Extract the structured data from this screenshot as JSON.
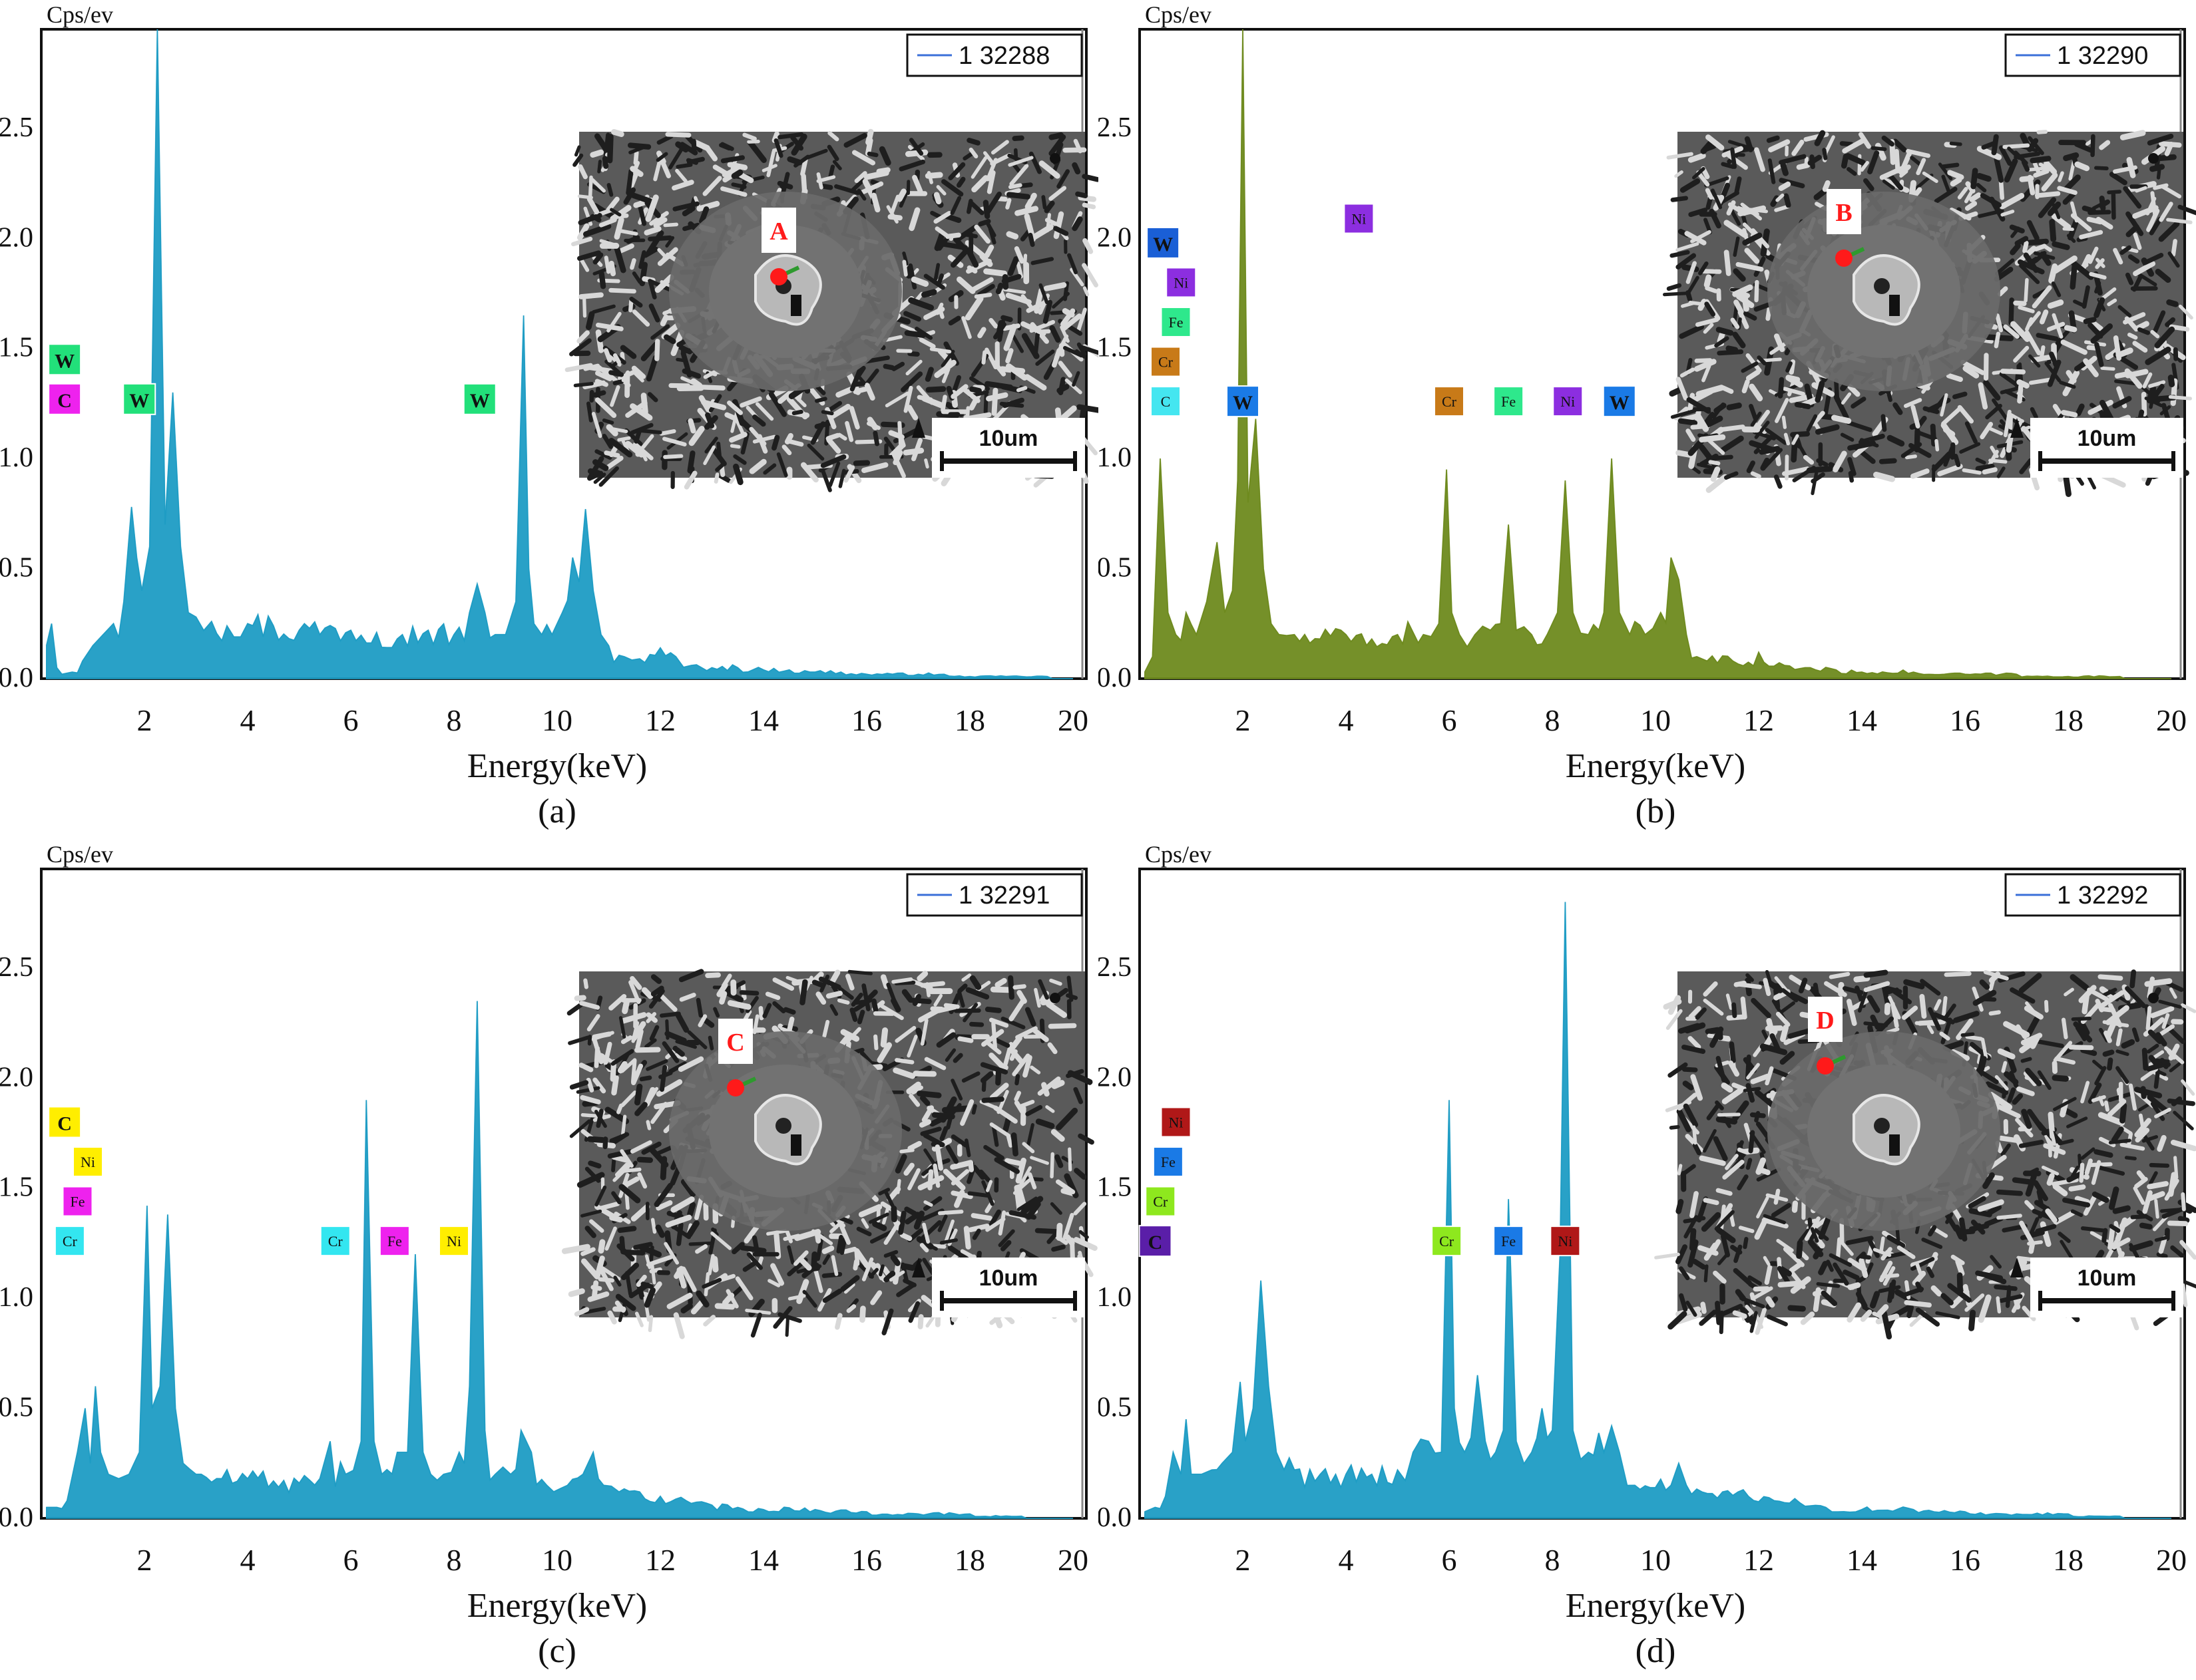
{
  "figure": {
    "panels": [
      "a",
      "b",
      "c",
      "d"
    ]
  },
  "chart_data": [
    {
      "type": "area",
      "id": "a",
      "caption": "(a)",
      "title": "",
      "xlabel": "Energy(keV)",
      "ylabel": "Cps/ev",
      "xlim": [
        0,
        20
      ],
      "ylim": [
        0,
        2.95
      ],
      "x_ticks": [
        2,
        4,
        6,
        8,
        10,
        12,
        14,
        16,
        18,
        20
      ],
      "y_ticks": [
        0.0,
        0.5,
        1.0,
        1.5,
        2.0,
        2.5
      ],
      "y_tick_labels": [
        "0.0",
        "0.5",
        "1.0",
        "1.5",
        "2.0",
        "2.5"
      ],
      "grid": false,
      "legend": {
        "label": "1 32288",
        "placement": "top-right"
      },
      "series": [
        {
          "name": "1 32288",
          "color": "#1e9cc4",
          "x": [
            0.1,
            0.2,
            0.3,
            0.4,
            0.6,
            0.8,
            1.0,
            1.2,
            1.4,
            1.6,
            1.75,
            1.85,
            1.95,
            2.1,
            2.25,
            2.4,
            2.55,
            2.7,
            2.85,
            3.0,
            3.3,
            3.6,
            4.0,
            4.5,
            5.0,
            5.5,
            6.0,
            6.5,
            7.0,
            7.5,
            8.0,
            8.3,
            8.45,
            8.6,
            8.8,
            9.0,
            9.2,
            9.35,
            9.45,
            9.55,
            9.7,
            9.9,
            10.1,
            10.3,
            10.55,
            10.7,
            10.85,
            11.0,
            11.3,
            11.6,
            12.0,
            12.3,
            12.6,
            13.0,
            13.5,
            14.0,
            14.5,
            15.0,
            15.5,
            16.0,
            16.5,
            17.0,
            17.5,
            18.0,
            18.5,
            19.0,
            19.5,
            20.0
          ],
          "y": [
            0.15,
            0.25,
            0.05,
            0.02,
            0.03,
            0.08,
            0.15,
            0.2,
            0.25,
            0.35,
            0.78,
            0.55,
            0.4,
            0.6,
            2.95,
            0.7,
            1.3,
            0.6,
            0.3,
            0.28,
            0.26,
            0.24,
            0.25,
            0.24,
            0.22,
            0.23,
            0.22,
            0.21,
            0.2,
            0.22,
            0.2,
            0.3,
            0.43,
            0.3,
            0.2,
            0.2,
            0.35,
            1.65,
            0.5,
            0.25,
            0.2,
            0.2,
            0.3,
            0.55,
            0.77,
            0.4,
            0.2,
            0.15,
            0.1,
            0.09,
            0.14,
            0.1,
            0.06,
            0.05,
            0.05,
            0.04,
            0.04,
            0.03,
            0.03,
            0.02,
            0.02,
            0.02,
            0.02,
            0.01,
            0.01,
            0.01,
            0.01,
            0.0
          ]
        }
      ],
      "peak_labels": [
        {
          "text": "W",
          "x": 0.35,
          "y": 1.45,
          "bg": "#22e07a",
          "size": "big"
        },
        {
          "text": "C",
          "x": 0.35,
          "y": 1.27,
          "bg": "#ee22ee",
          "size": "big"
        },
        {
          "text": "W",
          "x": 1.9,
          "y": 1.27,
          "bg": "#22e07a",
          "size": "big"
        },
        {
          "text": "W",
          "x": 8.5,
          "y": 1.27,
          "bg": "#22e07a",
          "size": "big"
        }
      ],
      "inset": {
        "spot_label": "A",
        "scale_label": "10um"
      }
    },
    {
      "type": "area",
      "id": "b",
      "caption": "(b)",
      "title": "",
      "xlabel": "Energy(keV)",
      "ylabel": "Cps/ev",
      "xlim": [
        0,
        20
      ],
      "ylim": [
        0,
        2.95
      ],
      "x_ticks": [
        2,
        4,
        6,
        8,
        10,
        12,
        14,
        16,
        18,
        20
      ],
      "y_ticks": [
        0.0,
        0.5,
        1.0,
        1.5,
        2.0,
        2.5
      ],
      "y_tick_labels": [
        "0.0",
        "0.5",
        "1.0",
        "1.5",
        "2.0",
        "2.5"
      ],
      "grid": false,
      "legend": {
        "label": "1 32290",
        "placement": "top-right"
      },
      "series": [
        {
          "name": "1 32290",
          "color": "#6e8a1e",
          "x": [
            0.1,
            0.25,
            0.4,
            0.55,
            0.7,
            0.9,
            1.1,
            1.3,
            1.5,
            1.65,
            1.8,
            1.9,
            2.0,
            2.1,
            2.25,
            2.4,
            2.55,
            2.7,
            3.0,
            3.5,
            4.0,
            4.5,
            5.0,
            5.5,
            5.8,
            5.95,
            6.05,
            6.2,
            6.5,
            6.8,
            7.0,
            7.15,
            7.3,
            7.6,
            7.9,
            8.1,
            8.25,
            8.4,
            8.7,
            9.0,
            9.15,
            9.3,
            9.5,
            9.8,
            10.1,
            10.3,
            10.45,
            10.6,
            10.8,
            11.0,
            11.5,
            12.0,
            12.5,
            13.0,
            13.5,
            14.0,
            15.0,
            16.0,
            17.0,
            18.0,
            19.0,
            20.0
          ],
          "y": [
            0.03,
            0.1,
            1.0,
            0.3,
            0.2,
            0.3,
            0.2,
            0.35,
            0.62,
            0.3,
            0.4,
            0.9,
            2.95,
            0.8,
            1.18,
            0.5,
            0.25,
            0.2,
            0.2,
            0.18,
            0.2,
            0.18,
            0.2,
            0.2,
            0.25,
            0.95,
            0.3,
            0.2,
            0.2,
            0.22,
            0.25,
            0.7,
            0.22,
            0.2,
            0.2,
            0.3,
            0.9,
            0.3,
            0.2,
            0.3,
            1.0,
            0.3,
            0.2,
            0.2,
            0.3,
            0.55,
            0.45,
            0.2,
            0.1,
            0.08,
            0.08,
            0.12,
            0.06,
            0.05,
            0.04,
            0.03,
            0.03,
            0.02,
            0.02,
            0.01,
            0.01,
            0.0
          ]
        }
      ],
      "peak_labels": [
        {
          "text": "W",
          "x": 0.35,
          "y": 1.98,
          "bg": "#1a5fd6",
          "size": "big"
        },
        {
          "text": "Ni",
          "x": 0.7,
          "y": 1.8,
          "bg": "#8c2ee0",
          "size": "small"
        },
        {
          "text": "Fe",
          "x": 0.6,
          "y": 1.62,
          "bg": "#2ee88c",
          "size": "small"
        },
        {
          "text": "Cr",
          "x": 0.4,
          "y": 1.44,
          "bg": "#c87a18",
          "size": "small"
        },
        {
          "text": "C",
          "x": 0.4,
          "y": 1.26,
          "bg": "#44e6f0",
          "size": "small"
        },
        {
          "text": "W",
          "x": 2.0,
          "y": 1.26,
          "bg": "#1a7ae6",
          "size": "big"
        },
        {
          "text": "Cr",
          "x": 6.0,
          "y": 1.26,
          "bg": "#c87a18",
          "size": "small"
        },
        {
          "text": "Fe",
          "x": 7.15,
          "y": 1.26,
          "bg": "#2ee88c",
          "size": "small"
        },
        {
          "text": "Ni",
          "x": 8.3,
          "y": 1.26,
          "bg": "#8c2ee0",
          "size": "small"
        },
        {
          "text": "W",
          "x": 9.3,
          "y": 1.26,
          "bg": "#1a7ae6",
          "size": "big"
        },
        {
          "text": "Ni",
          "x": 4.25,
          "y": 2.09,
          "bg": "#8c2ee0",
          "size": "small"
        }
      ],
      "inset": {
        "spot_label": "B",
        "scale_label": "10um"
      }
    },
    {
      "type": "area",
      "id": "c",
      "caption": "(c)",
      "title": "",
      "xlabel": "Energy(keV)",
      "ylabel": "Cps/ev",
      "xlim": [
        0,
        20
      ],
      "ylim": [
        0,
        2.95
      ],
      "x_ticks": [
        2,
        4,
        6,
        8,
        10,
        12,
        14,
        16,
        18,
        20
      ],
      "y_ticks": [
        0.0,
        0.5,
        1.0,
        1.5,
        2.0,
        2.5
      ],
      "y_tick_labels": [
        "0.0",
        "0.5",
        "1.0",
        "1.5",
        "2.0",
        "2.5"
      ],
      "grid": false,
      "legend": {
        "label": "1 32291",
        "placement": "top-right"
      },
      "series": [
        {
          "name": "1 32291",
          "color": "#1e9cc4",
          "x": [
            0.1,
            0.3,
            0.5,
            0.7,
            0.85,
            0.95,
            1.05,
            1.15,
            1.3,
            1.5,
            1.7,
            1.9,
            2.05,
            2.15,
            2.3,
            2.45,
            2.6,
            2.75,
            3.0,
            3.5,
            4.0,
            4.5,
            5.0,
            5.4,
            5.6,
            5.9,
            6.2,
            6.3,
            6.45,
            6.6,
            6.9,
            7.1,
            7.25,
            7.4,
            7.55,
            7.8,
            8.1,
            8.3,
            8.45,
            8.6,
            8.8,
            9.1,
            9.3,
            9.5,
            9.8,
            10.2,
            10.5,
            10.7,
            10.9,
            11.2,
            11.6,
            12.0,
            12.5,
            13.0,
            13.5,
            14.0,
            15.0,
            16.0,
            17.0,
            18.0,
            19.0,
            20.0
          ],
          "y": [
            0.05,
            0.05,
            0.08,
            0.3,
            0.5,
            0.25,
            0.6,
            0.3,
            0.2,
            0.18,
            0.2,
            0.3,
            1.42,
            0.5,
            0.6,
            1.38,
            0.5,
            0.25,
            0.2,
            0.18,
            0.18,
            0.17,
            0.16,
            0.18,
            0.35,
            0.2,
            0.35,
            1.9,
            0.35,
            0.2,
            0.3,
            0.3,
            1.2,
            0.3,
            0.2,
            0.2,
            0.3,
            0.6,
            2.35,
            0.4,
            0.2,
            0.2,
            0.4,
            0.3,
            0.15,
            0.15,
            0.2,
            0.3,
            0.15,
            0.12,
            0.12,
            0.1,
            0.08,
            0.06,
            0.05,
            0.04,
            0.04,
            0.03,
            0.02,
            0.02,
            0.01,
            0.0
          ]
        }
      ],
      "peak_labels": [
        {
          "text": "C",
          "x": 0.35,
          "y": 1.8,
          "bg": "#ffee00",
          "size": "big"
        },
        {
          "text": "Ni",
          "x": 0.8,
          "y": 1.62,
          "bg": "#ffee00",
          "size": "small"
        },
        {
          "text": "Fe",
          "x": 0.6,
          "y": 1.44,
          "bg": "#ee22ee",
          "size": "small"
        },
        {
          "text": "Cr",
          "x": 0.45,
          "y": 1.26,
          "bg": "#33e6f0",
          "size": "small"
        },
        {
          "text": "Cr",
          "x": 5.7,
          "y": 1.26,
          "bg": "#33e6f0",
          "size": "small"
        },
        {
          "text": "Fe",
          "x": 6.85,
          "y": 1.26,
          "bg": "#ee22ee",
          "size": "small"
        },
        {
          "text": "Ni",
          "x": 8.0,
          "y": 1.26,
          "bg": "#ffee00",
          "size": "small"
        }
      ],
      "inset": {
        "spot_label": "C",
        "scale_label": "10um"
      }
    },
    {
      "type": "area",
      "id": "d",
      "caption": "(d)",
      "title": "",
      "xlabel": "Energy(keV)",
      "ylabel": "Cps/ev",
      "xlim": [
        0,
        20
      ],
      "ylim": [
        0,
        2.95
      ],
      "x_ticks": [
        2,
        4,
        6,
        8,
        10,
        12,
        14,
        16,
        18,
        20
      ],
      "y_ticks": [
        0.0,
        0.5,
        1.0,
        1.5,
        2.0,
        2.5
      ],
      "y_tick_labels": [
        "0.0",
        "0.5",
        "1.0",
        "1.5",
        "2.0",
        "2.5"
      ],
      "grid": false,
      "legend": {
        "label": "1 32292",
        "placement": "top-right"
      },
      "series": [
        {
          "name": "1 32292",
          "color": "#1e9cc4",
          "x": [
            0.1,
            0.3,
            0.5,
            0.65,
            0.8,
            0.9,
            1.0,
            1.2,
            1.4,
            1.6,
            1.8,
            1.95,
            2.05,
            2.2,
            2.35,
            2.5,
            2.65,
            2.8,
            3.0,
            3.5,
            4.0,
            4.5,
            5.0,
            5.3,
            5.6,
            5.85,
            6.0,
            6.1,
            6.3,
            6.55,
            6.7,
            6.9,
            7.05,
            7.15,
            7.3,
            7.6,
            7.8,
            8.0,
            8.15,
            8.25,
            8.4,
            8.7,
            9.0,
            9.15,
            9.3,
            9.6,
            10.0,
            10.3,
            10.45,
            10.6,
            10.9,
            11.3,
            11.8,
            12.3,
            12.8,
            13.3,
            14.0,
            15.0,
            16.0,
            17.0,
            18.0,
            19.0,
            20.0
          ],
          "y": [
            0.03,
            0.05,
            0.1,
            0.3,
            0.2,
            0.45,
            0.2,
            0.2,
            0.22,
            0.25,
            0.3,
            0.62,
            0.35,
            0.5,
            1.08,
            0.6,
            0.3,
            0.22,
            0.22,
            0.2,
            0.2,
            0.2,
            0.22,
            0.3,
            0.35,
            0.3,
            1.9,
            0.5,
            0.3,
            0.65,
            0.35,
            0.3,
            0.4,
            1.45,
            0.35,
            0.3,
            0.5,
            0.4,
            1.2,
            2.8,
            0.4,
            0.3,
            0.3,
            0.42,
            0.3,
            0.15,
            0.14,
            0.15,
            0.25,
            0.15,
            0.12,
            0.12,
            0.1,
            0.08,
            0.07,
            0.05,
            0.04,
            0.04,
            0.03,
            0.02,
            0.02,
            0.01,
            0.0
          ]
        }
      ],
      "peak_labels": [
        {
          "text": "Ni",
          "x": 0.6,
          "y": 1.8,
          "bg": "#b01818",
          "size": "small"
        },
        {
          "text": "Fe",
          "x": 0.45,
          "y": 1.62,
          "bg": "#1a7ae6",
          "size": "small"
        },
        {
          "text": "Cr",
          "x": 0.3,
          "y": 1.44,
          "bg": "#8ee81e",
          "size": "small"
        },
        {
          "text": "C",
          "x": 0.2,
          "y": 1.26,
          "bg": "#5a1ea8",
          "size": "big"
        },
        {
          "text": "Cr",
          "x": 5.95,
          "y": 1.26,
          "bg": "#8ee81e",
          "size": "small"
        },
        {
          "text": "Fe",
          "x": 7.15,
          "y": 1.26,
          "bg": "#1a7ae6",
          "size": "small"
        },
        {
          "text": "Ni",
          "x": 8.25,
          "y": 1.26,
          "bg": "#b01818",
          "size": "small"
        }
      ],
      "inset": {
        "spot_label": "D",
        "scale_label": "10um"
      }
    }
  ]
}
